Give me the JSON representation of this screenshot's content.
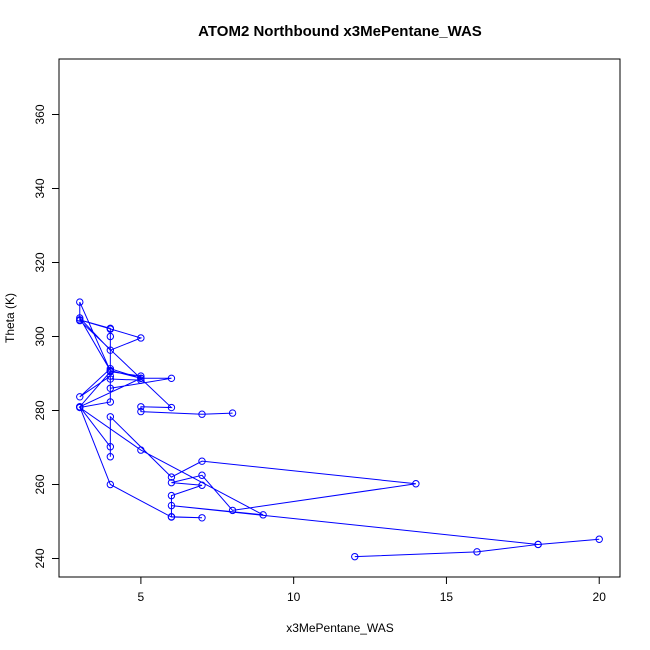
{
  "chart_data": {
    "type": "line",
    "title": "ATOM2 Northbound x3MePentane_WAS",
    "xlabel": "x3MePentane_WAS",
    "ylabel": "Theta (K)",
    "xlim": [
      2.32,
      20.68
    ],
    "ylim": [
      235,
      375
    ],
    "x_ticks": [
      5,
      10,
      15,
      20
    ],
    "y_ticks": [
      240,
      260,
      280,
      300,
      320,
      340,
      360
    ],
    "grid": false,
    "legend": "none",
    "series_color": "#0000ff",
    "markers": "open-circle",
    "series": [
      {
        "x": [
          12,
          16,
          18,
          20,
          18,
          6,
          9,
          5,
          3,
          4,
          4,
          3,
          4,
          5,
          3,
          4,
          4,
          4,
          6,
          7,
          14,
          8,
          7,
          6,
          7,
          6,
          6,
          7,
          6,
          4,
          3,
          4,
          5,
          5,
          4,
          4,
          6,
          5,
          4,
          3,
          4,
          5,
          3,
          4,
          4,
          4,
          4,
          3,
          3,
          6,
          5,
          5,
          7,
          8
        ],
        "y": [
          240.5,
          241.8,
          243.8,
          245.2,
          243.8,
          254.3,
          251.8,
          269.3,
          280.8,
          282.3,
          289.3,
          283.7,
          291.3,
          288.7,
          281.0,
          270.2,
          267.5,
          278.3,
          262.0,
          266.3,
          260.2,
          253.0,
          262.5,
          260.5,
          259.8,
          257.0,
          251.3,
          251.0,
          251.2,
          260.0,
          281.0,
          290.5,
          289.3,
          288.2,
          288.5,
          286.0,
          288.7,
          288.7,
          290.8,
          305.0,
          296.3,
          299.6,
          304.5,
          302.2,
          300.0,
          302.0,
          290.7,
          309.3,
          304.3,
          280.8,
          281.0,
          279.7,
          279.0,
          279.3
        ]
      }
    ]
  }
}
